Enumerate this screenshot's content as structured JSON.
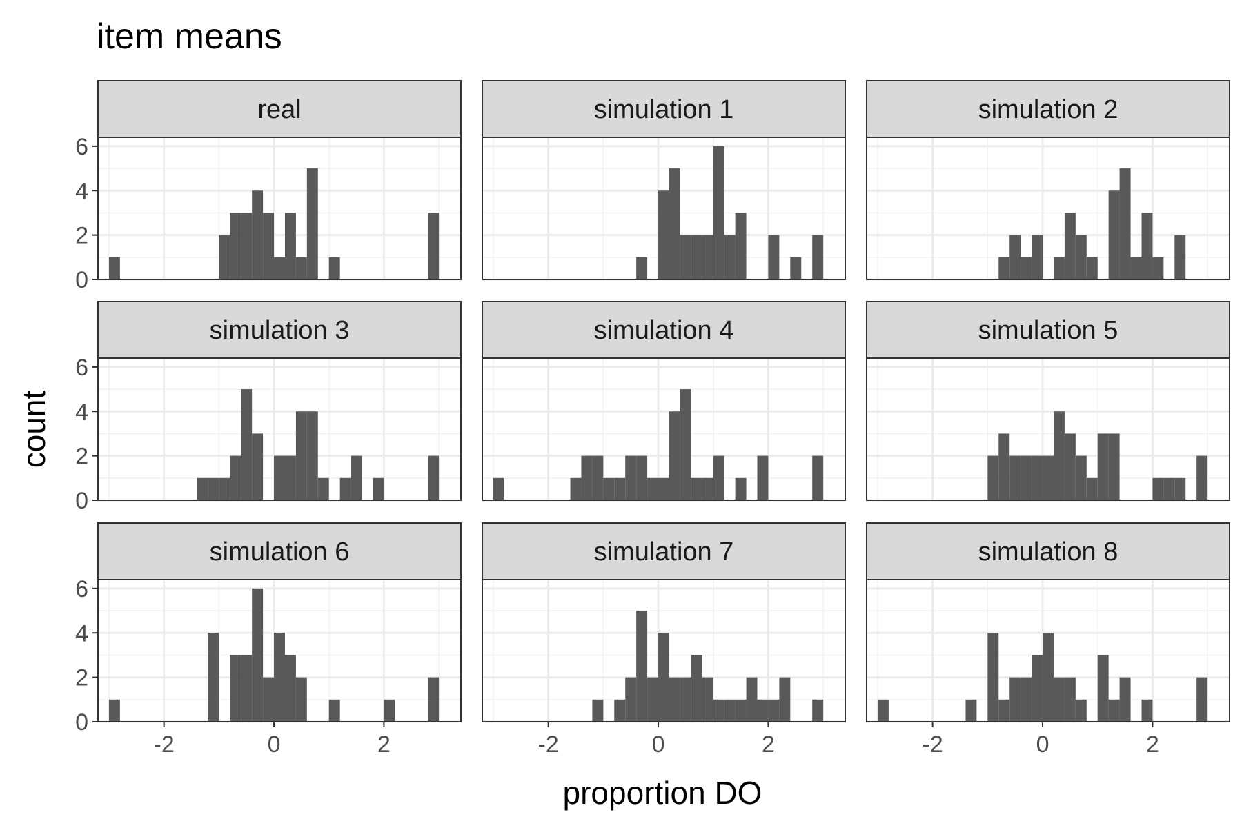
{
  "chart_data": {
    "type": "bar",
    "title": "item means",
    "xlabel": "proportion DO",
    "ylabel": "count",
    "xlim": [
      -3.2,
      3.4
    ],
    "ylim": [
      0,
      6.4
    ],
    "x_ticks": [
      -2,
      0,
      2
    ],
    "x_tick_labels": [
      "-2",
      "0",
      "2"
    ],
    "y_ticks": [
      0,
      2,
      4,
      6
    ],
    "y_tick_labels": [
      "0",
      "2",
      "4",
      "6"
    ],
    "bins": [
      -2.9,
      -2.7,
      -2.5,
      -2.3,
      -2.1,
      -1.9,
      -1.7,
      -1.5,
      -1.3,
      -1.1,
      -0.9,
      -0.7,
      -0.5,
      -0.3,
      -0.1,
      0.1,
      0.3,
      0.5,
      0.7,
      0.9,
      1.1,
      1.3,
      1.5,
      1.7,
      1.9,
      2.1,
      2.3,
      2.5,
      2.7,
      2.9
    ],
    "bin_width": 0.2,
    "grid": true,
    "facet_layout": "3x3",
    "panels": [
      {
        "name": "real",
        "values": [
          1,
          0,
          0,
          0,
          0,
          0,
          0,
          0,
          0,
          0,
          2,
          3,
          3,
          4,
          3,
          1,
          3,
          1,
          5,
          0,
          1,
          0,
          0,
          0,
          0,
          0,
          0,
          0,
          0,
          3
        ]
      },
      {
        "name": "simulation 1",
        "values": [
          0,
          0,
          0,
          0,
          0,
          0,
          0,
          0,
          0,
          0,
          0,
          0,
          0,
          1,
          0,
          4,
          5,
          2,
          2,
          2,
          6,
          2,
          3,
          0,
          0,
          2,
          0,
          1,
          0,
          2
        ]
      },
      {
        "name": "simulation 2",
        "values": [
          0,
          0,
          0,
          0,
          0,
          0,
          0,
          0,
          0,
          0,
          0,
          1,
          2,
          1,
          2,
          0,
          1,
          3,
          2,
          1,
          0,
          4,
          5,
          1,
          3,
          1,
          0,
          2,
          0,
          0
        ]
      },
      {
        "name": "simulation 3",
        "values": [
          0,
          0,
          0,
          0,
          0,
          0,
          0,
          0,
          1,
          1,
          1,
          2,
          5,
          3,
          0,
          2,
          2,
          4,
          4,
          1,
          0,
          1,
          2,
          0,
          1,
          0,
          0,
          0,
          0,
          2
        ]
      },
      {
        "name": "simulation 4",
        "values": [
          1,
          0,
          0,
          0,
          0,
          0,
          0,
          1,
          2,
          2,
          1,
          1,
          2,
          2,
          1,
          1,
          4,
          5,
          1,
          1,
          2,
          0,
          1,
          0,
          2,
          0,
          0,
          0,
          0,
          2
        ]
      },
      {
        "name": "simulation 5",
        "values": [
          0,
          0,
          0,
          0,
          0,
          0,
          0,
          0,
          0,
          0,
          2,
          3,
          2,
          2,
          2,
          2,
          4,
          3,
          2,
          1,
          3,
          3,
          0,
          0,
          0,
          1,
          1,
          1,
          0,
          2
        ]
      },
      {
        "name": "simulation 6",
        "values": [
          1,
          0,
          0,
          0,
          0,
          0,
          0,
          0,
          0,
          4,
          0,
          3,
          3,
          6,
          2,
          4,
          3,
          2,
          0,
          0,
          1,
          0,
          0,
          0,
          0,
          1,
          0,
          0,
          0,
          2
        ]
      },
      {
        "name": "simulation 7",
        "values": [
          0,
          0,
          0,
          0,
          0,
          0,
          0,
          0,
          0,
          1,
          0,
          1,
          2,
          5,
          2,
          4,
          2,
          2,
          3,
          2,
          1,
          1,
          1,
          2,
          1,
          1,
          2,
          0,
          0,
          1
        ]
      },
      {
        "name": "simulation 8",
        "values": [
          1,
          0,
          0,
          0,
          0,
          0,
          0,
          0,
          1,
          0,
          4,
          1,
          2,
          2,
          3,
          4,
          2,
          2,
          1,
          0,
          3,
          1,
          2,
          0,
          1,
          0,
          0,
          0,
          0,
          2
        ]
      }
    ]
  }
}
